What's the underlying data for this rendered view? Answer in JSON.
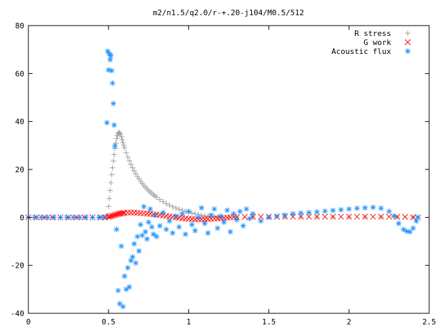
{
  "chart_data": {
    "type": "scatter",
    "title": "m2/n1.5/q2.0/r-+.20-j104/M0.5/512",
    "xlabel": "",
    "ylabel": "",
    "xlim": [
      0,
      2.5
    ],
    "ylim": [
      -40,
      80
    ],
    "xticks": [
      "0",
      "0.5",
      "1",
      "1.5",
      "2",
      "2.5"
    ],
    "yticks": [
      "-40",
      "-20",
      "0",
      "20",
      "40",
      "60",
      "80"
    ],
    "legend_position": "top-right",
    "grid": false,
    "series": [
      {
        "name": "R stress",
        "marker": "plus",
        "color": "#a0a0a0",
        "x": [
          0.0,
          0.05,
          0.1,
          0.15,
          0.2,
          0.25,
          0.3,
          0.35,
          0.4,
          0.45,
          0.48,
          0.49,
          0.5,
          0.505,
          0.51,
          0.515,
          0.52,
          0.525,
          0.53,
          0.535,
          0.54,
          0.545,
          0.55,
          0.555,
          0.56,
          0.565,
          0.57,
          0.575,
          0.58,
          0.585,
          0.59,
          0.595,
          0.6,
          0.61,
          0.62,
          0.63,
          0.64,
          0.65,
          0.66,
          0.67,
          0.68,
          0.69,
          0.7,
          0.71,
          0.72,
          0.73,
          0.74,
          0.75,
          0.76,
          0.77,
          0.78,
          0.79,
          0.8,
          0.82,
          0.84,
          0.86,
          0.88,
          0.9,
          0.92,
          0.94,
          0.96,
          0.98,
          1.0,
          1.02,
          1.04,
          1.06,
          1.08,
          1.1,
          1.12,
          1.14,
          1.16,
          1.18,
          1.2,
          1.25,
          1.3,
          1.4,
          1.5,
          1.6,
          1.7,
          1.8,
          1.9,
          2.0,
          2.1,
          2.2,
          2.3,
          2.4,
          2.43
        ],
        "y": [
          0,
          0,
          0,
          0,
          0,
          0,
          0,
          0,
          0,
          0,
          0,
          0.8,
          4.6,
          7.9,
          11.2,
          14.5,
          17.8,
          20.7,
          23.5,
          26.2,
          28.8,
          31.0,
          32.9,
          34.2,
          35.0,
          35.4,
          35.2,
          34.6,
          33.6,
          32.4,
          31.2,
          30.1,
          29.0,
          27.0,
          25.2,
          23.6,
          22.1,
          20.7,
          19.4,
          18.2,
          17.1,
          16.1,
          15.1,
          14.2,
          13.4,
          12.6,
          11.9,
          11.2,
          10.6,
          10.0,
          9.4,
          8.9,
          8.4,
          7.4,
          6.6,
          5.8,
          5.1,
          4.5,
          3.9,
          3.4,
          3.0,
          2.5,
          2.1,
          1.8,
          1.5,
          1.2,
          0.9,
          0.7,
          0.5,
          0.4,
          0.3,
          0.2,
          0.1,
          0.1,
          0.1,
          0.1,
          0.1,
          0.1,
          0.1,
          0.1,
          0.1,
          0.1,
          0.1,
          0.1,
          0.1,
          0.1,
          0.1
        ]
      },
      {
        "name": "G work",
        "marker": "cross",
        "color": "#ff0000",
        "x": [
          0.0,
          0.05,
          0.1,
          0.15,
          0.2,
          0.25,
          0.3,
          0.35,
          0.4,
          0.45,
          0.48,
          0.5,
          0.51,
          0.52,
          0.53,
          0.54,
          0.55,
          0.56,
          0.57,
          0.58,
          0.59,
          0.6,
          0.62,
          0.64,
          0.66,
          0.68,
          0.7,
          0.72,
          0.74,
          0.76,
          0.78,
          0.8,
          0.82,
          0.84,
          0.86,
          0.88,
          0.9,
          0.92,
          0.94,
          0.96,
          0.98,
          1.0,
          1.02,
          1.04,
          1.06,
          1.08,
          1.1,
          1.12,
          1.14,
          1.16,
          1.18,
          1.2,
          1.22,
          1.24,
          1.26,
          1.28,
          1.3,
          1.35,
          1.4,
          1.45,
          1.5,
          1.55,
          1.6,
          1.65,
          1.7,
          1.75,
          1.8,
          1.85,
          1.9,
          1.95,
          2.0,
          2.05,
          2.1,
          2.15,
          2.2,
          2.25,
          2.3,
          2.35,
          2.4,
          2.43
        ],
        "y": [
          0,
          0,
          0,
          0,
          0,
          0,
          0,
          0,
          0,
          0,
          0,
          0.2,
          0.4,
          0.6,
          0.8,
          1.0,
          1.2,
          1.4,
          1.6,
          1.7,
          1.8,
          1.9,
          2.0,
          2.0,
          2.0,
          1.9,
          1.8,
          1.7,
          1.6,
          1.5,
          1.3,
          1.2,
          1.0,
          0.8,
          0.6,
          0.4,
          0.2,
          0.0,
          -0.2,
          -0.4,
          -0.5,
          -0.6,
          -0.7,
          -0.8,
          -0.8,
          -0.8,
          -0.8,
          -0.7,
          -0.6,
          -0.5,
          -0.4,
          -0.3,
          -0.2,
          -0.1,
          0.0,
          0.1,
          0.1,
          0.2,
          0.2,
          0.3,
          0.3,
          0.3,
          0.3,
          0.3,
          0.3,
          0.3,
          0.3,
          0.3,
          0.3,
          0.3,
          0.3,
          0.3,
          0.3,
          0.3,
          0.3,
          0.3,
          0.2,
          0.2,
          0.1,
          0.0
        ]
      },
      {
        "name": "Acoustic flux",
        "marker": "star",
        "color": "#1e90ff",
        "x": [
          0.0,
          0.04,
          0.08,
          0.12,
          0.16,
          0.2,
          0.24,
          0.28,
          0.32,
          0.36,
          0.4,
          0.44,
          0.47,
          0.49,
          0.495,
          0.5,
          0.505,
          0.51,
          0.515,
          0.52,
          0.525,
          0.53,
          0.535,
          0.54,
          0.55,
          0.56,
          0.57,
          0.58,
          0.59,
          0.6,
          0.61,
          0.62,
          0.63,
          0.64,
          0.65,
          0.66,
          0.67,
          0.68,
          0.69,
          0.7,
          0.71,
          0.72,
          0.73,
          0.74,
          0.75,
          0.76,
          0.77,
          0.78,
          0.79,
          0.8,
          0.82,
          0.84,
          0.86,
          0.88,
          0.9,
          0.92,
          0.94,
          0.96,
          0.98,
          1.0,
          1.02,
          1.04,
          1.06,
          1.08,
          1.1,
          1.12,
          1.14,
          1.16,
          1.18,
          1.2,
          1.22,
          1.24,
          1.26,
          1.28,
          1.3,
          1.32,
          1.34,
          1.36,
          1.38,
          1.4,
          1.45,
          1.5,
          1.55,
          1.6,
          1.65,
          1.7,
          1.75,
          1.8,
          1.85,
          1.9,
          1.95,
          2.0,
          2.05,
          2.1,
          2.15,
          2.2,
          2.25,
          2.28,
          2.31,
          2.34,
          2.36,
          2.38,
          2.4,
          2.42,
          2.43
        ],
        "y": [
          0,
          0,
          0,
          0,
          0,
          0,
          0,
          0,
          0,
          0,
          0,
          0,
          0,
          39.5,
          69.3,
          61.5,
          68.2,
          65.8,
          67.5,
          61.2,
          56.0,
          47.5,
          38.5,
          29.8,
          -5.0,
          -30.5,
          -36.0,
          -12.0,
          -37.2,
          -24.5,
          -30.0,
          -21.0,
          -29.0,
          -18.0,
          -16.5,
          -11.0,
          -19.0,
          -8.0,
          -14.0,
          -3.0,
          -7.5,
          4.5,
          -6.0,
          -9.0,
          -2.0,
          3.5,
          -4.0,
          -7.0,
          1.0,
          -8.0,
          -3.5,
          2.0,
          -5.0,
          -1.5,
          -6.5,
          0.5,
          -4.0,
          1.5,
          -7.0,
          2.5,
          -3.0,
          -5.5,
          0.0,
          4.0,
          -2.5,
          -6.5,
          1.0,
          3.5,
          -4.5,
          0.5,
          -2.0,
          3.0,
          -6.0,
          1.5,
          -1.0,
          2.5,
          -3.5,
          3.5,
          -0.5,
          1.5,
          -1.5,
          0.0,
          0.5,
          1.0,
          1.5,
          1.8,
          2.0,
          2.3,
          2.6,
          2.9,
          3.2,
          3.5,
          3.8,
          4.0,
          4.2,
          3.8,
          2.5,
          0.5,
          -2.5,
          -5.0,
          -5.8,
          -6.0,
          -4.5,
          -1.5,
          0.0
        ]
      }
    ]
  }
}
